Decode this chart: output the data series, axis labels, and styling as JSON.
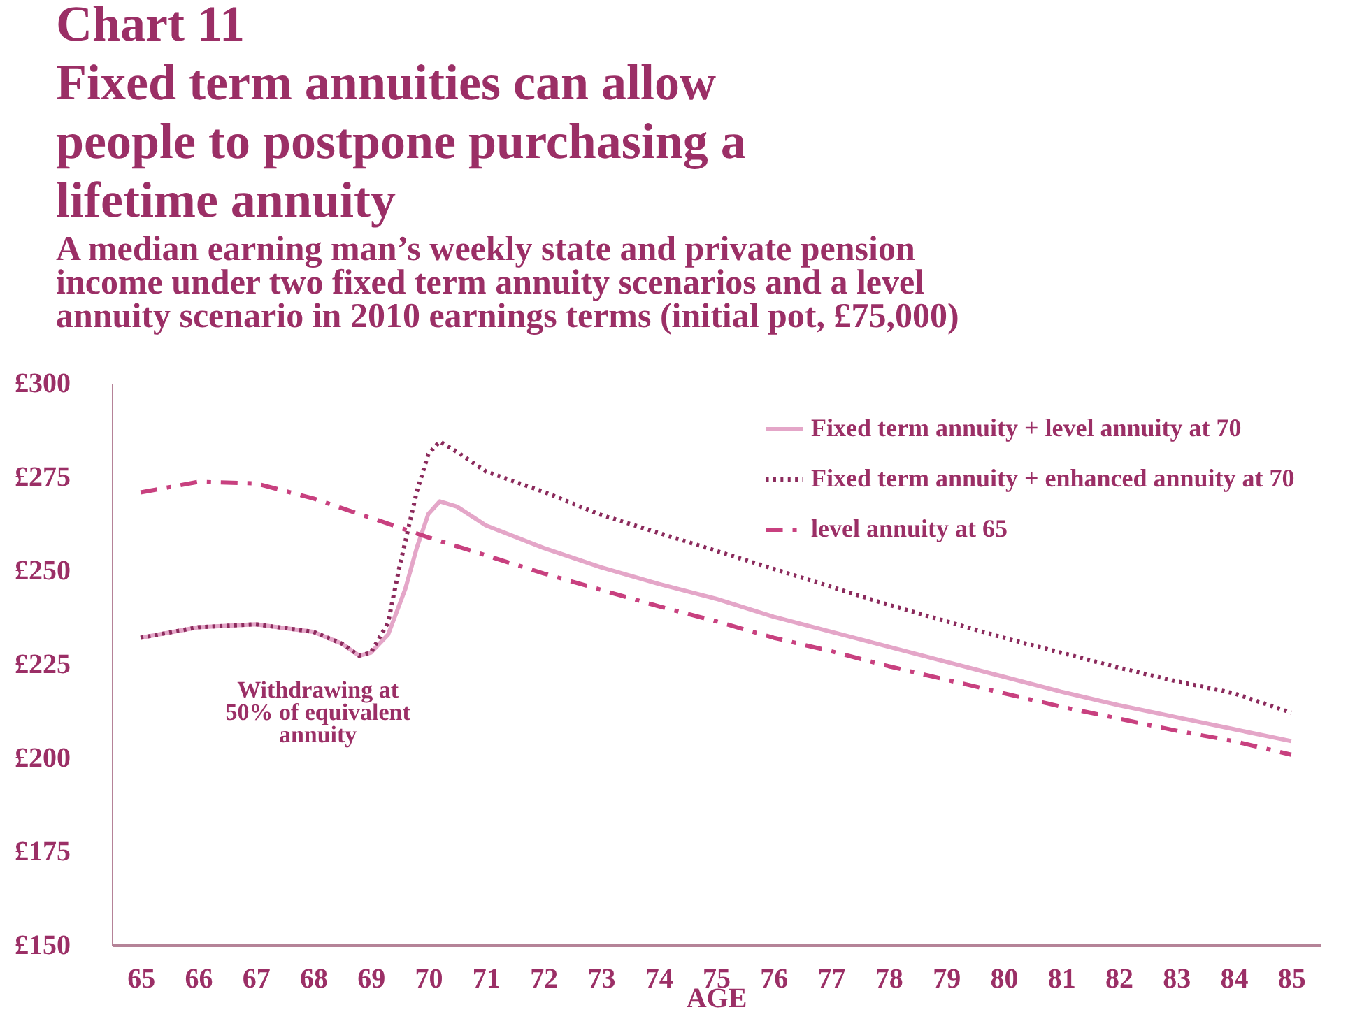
{
  "chart_data": {
    "type": "line",
    "title": [
      "Fixed term annuities can allow",
      "people to postpone purchasing a",
      "lifetime annuity"
    ],
    "subtitle": [
      "A median earning man’s weekly state and private pension",
      "income under two fixed term annuity scenarios and a level",
      "annuity scenario in 2010 earnings terms (initial pot, £75,000)"
    ],
    "xlabel": "AGE",
    "xlim": [
      64.5,
      85.5
    ],
    "xticks": [
      65,
      66,
      67,
      68,
      69,
      70,
      71,
      72,
      73,
      74,
      75,
      76,
      77,
      78,
      79,
      80,
      81,
      82,
      83,
      84,
      85
    ],
    "ylim": [
      150,
      300
    ],
    "yticks": [
      {
        "value": 150,
        "label": "£150"
      },
      {
        "value": 175,
        "label": "£175"
      },
      {
        "value": 200,
        "label": "£200"
      },
      {
        "value": 225,
        "label": "£225"
      },
      {
        "value": 250,
        "label": "£250"
      },
      {
        "value": 275,
        "label": "£275"
      },
      {
        "value": 300,
        "label": "£300"
      }
    ],
    "grid": false,
    "legend": "top right",
    "series": [
      {
        "name": "Fixed term annuity + level annuity at 70",
        "color": "#e4a6c8",
        "line_style": "solid",
        "x": [
          65,
          66,
          67,
          68,
          68.5,
          68.8,
          69,
          69.3,
          69.6,
          69.8,
          70,
          70.2,
          70.5,
          71,
          72,
          73,
          74,
          75,
          76,
          77,
          78,
          79,
          80,
          81,
          82,
          83,
          84,
          85
        ],
        "values": [
          232,
          234.8,
          235.6,
          233.6,
          230.4,
          227.2,
          228,
          232.8,
          245,
          256,
          265,
          268.4,
          267,
          262,
          256,
          250.8,
          246.4,
          242.4,
          237.6,
          233.6,
          229.6,
          225.6,
          221.6,
          217.6,
          214,
          210.8,
          207.6,
          204.4
        ]
      },
      {
        "name": "Fixed term annuity + enhanced annuity at 70",
        "color": "#8b2a5c",
        "line_style": "dotted",
        "x": [
          65,
          66,
          67,
          68,
          68.5,
          68.8,
          69,
          69.3,
          69.5,
          69.8,
          70,
          70.2,
          70.5,
          71,
          72,
          73,
          74,
          75,
          76,
          77,
          78,
          79,
          80,
          81,
          82,
          83,
          84,
          85
        ],
        "values": [
          232,
          234.8,
          235.6,
          233.6,
          230.4,
          227.2,
          228,
          236,
          251,
          271,
          281,
          284.4,
          281.6,
          276.4,
          271,
          264.8,
          260,
          255.2,
          250.4,
          245.6,
          240.8,
          236.4,
          232,
          228,
          224,
          220.4,
          217.2,
          212
        ]
      },
      {
        "name": "level annuity at 65",
        "color": "#c8407f",
        "line_style": "dashdot",
        "x": [
          65,
          66,
          67,
          68,
          69,
          70,
          71,
          72,
          73,
          74,
          75,
          76,
          77,
          78,
          79,
          80,
          81,
          82,
          83,
          84,
          85
        ],
        "values": [
          270.8,
          273.6,
          273.2,
          269.2,
          264,
          258.8,
          254,
          249.2,
          244.8,
          240.4,
          236.4,
          232,
          228.4,
          224.4,
          220.8,
          217.2,
          213.6,
          210.4,
          207.2,
          204.4,
          200.8
        ]
      }
    ],
    "annotations": [
      "Chart 11",
      {
        "text": "Withdrawing at\n50% of equivalent\nannuity",
        "x": 67.4,
        "y": 235
      }
    ]
  }
}
